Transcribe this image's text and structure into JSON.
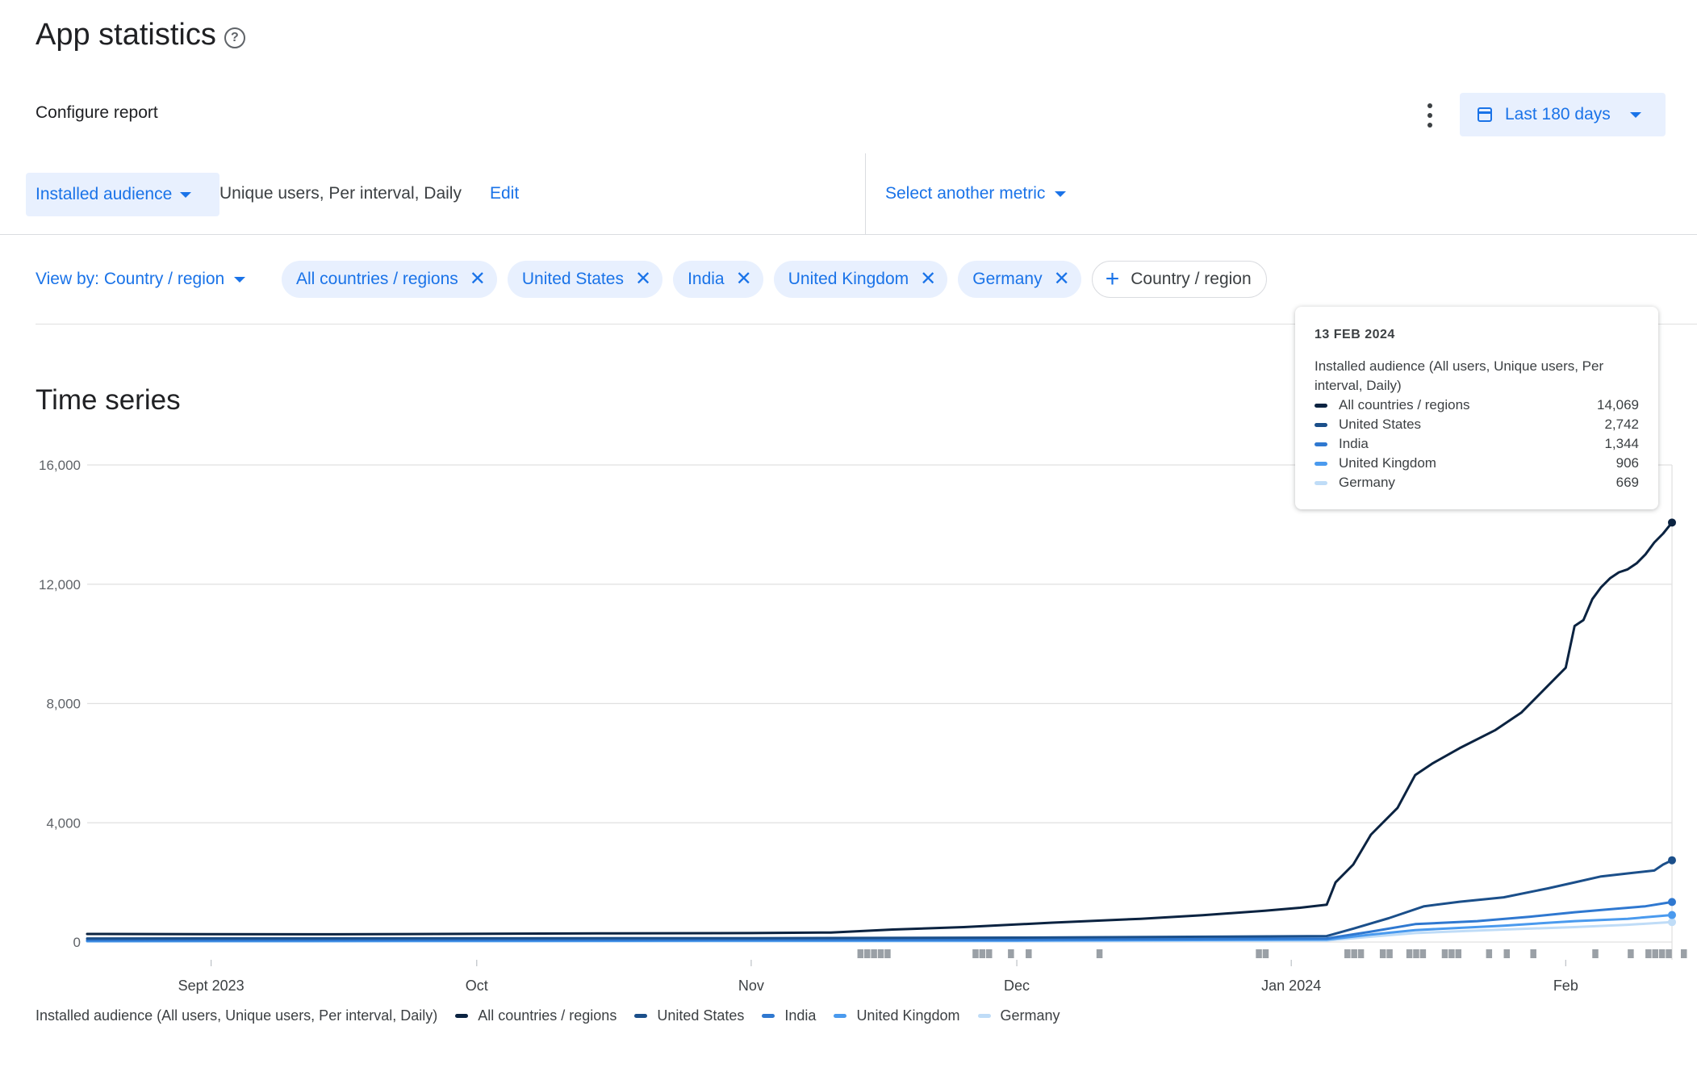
{
  "page": {
    "title": "App statistics",
    "help_icon": "help-circle-icon",
    "configure_label": "Configure report",
    "more_icon": "more-vert-icon",
    "date_range": {
      "icon": "calendar-icon",
      "label": "Last 180 days"
    }
  },
  "metric": {
    "selected": "Installed audience",
    "description": "Unique users, Per interval, Daily",
    "edit_label": "Edit",
    "another_metric_label": "Select another metric"
  },
  "filters": {
    "view_by_label": "View by: Country / region",
    "chips": [
      {
        "label": "All countries / regions"
      },
      {
        "label": "United States"
      },
      {
        "label": "India"
      },
      {
        "label": "United Kingdom"
      },
      {
        "label": "Germany"
      }
    ],
    "add_chip_label": "Country / region"
  },
  "time_series": {
    "title": "Time series"
  },
  "tooltip": {
    "date": "13 FEB 2024",
    "metric": "Installed audience (All users, Unique users, Per interval, Daily)",
    "rows": [
      {
        "name": "All countries / regions",
        "value": "14,069"
      },
      {
        "name": "United States",
        "value": "2,742"
      },
      {
        "name": "India",
        "value": "1,344"
      },
      {
        "name": "United Kingdom",
        "value": "906"
      },
      {
        "name": "Germany",
        "value": "669"
      }
    ]
  },
  "legend": {
    "metric": "Installed audience (All users, Unique users, Per interval, Daily)"
  },
  "colors": {
    "all": "#0b2341",
    "us": "#1b4f8a",
    "india": "#2f78d0",
    "uk": "#4a9aee",
    "germany": "#bfdcf7",
    "accent": "#1a73e8"
  },
  "chart_data": {
    "type": "line",
    "x_start": "2023-08-18",
    "x_end": "2024-02-13",
    "x_ticks": [
      "Sept 2023",
      "Oct",
      "Nov",
      "Dec",
      "Jan 2024",
      "Feb"
    ],
    "y_ticks": [
      "0",
      "4,000",
      "8,000",
      "12,000",
      "16,000"
    ],
    "ylim": [
      0,
      16000
    ],
    "grid": true,
    "series": [
      {
        "name": "All countries / regions",
        "color": "#0b2341",
        "points": [
          [
            "2023-08-18",
            270
          ],
          [
            "2023-09-15",
            260
          ],
          [
            "2023-10-15",
            290
          ],
          [
            "2023-11-01",
            300
          ],
          [
            "2023-11-10",
            320
          ],
          [
            "2023-11-17",
            420
          ],
          [
            "2023-11-25",
            500
          ],
          [
            "2023-12-05",
            650
          ],
          [
            "2023-12-15",
            780
          ],
          [
            "2023-12-22",
            900
          ],
          [
            "2023-12-29",
            1050
          ],
          [
            "2024-01-02",
            1150
          ],
          [
            "2024-01-05",
            1250
          ],
          [
            "2024-01-06",
            2000
          ],
          [
            "2024-01-08",
            2600
          ],
          [
            "2024-01-10",
            3600
          ],
          [
            "2024-01-13",
            4500
          ],
          [
            "2024-01-15",
            5600
          ],
          [
            "2024-01-17",
            6000
          ],
          [
            "2024-01-20",
            6500
          ],
          [
            "2024-01-24",
            7100
          ],
          [
            "2024-01-27",
            7700
          ],
          [
            "2024-01-30",
            8600
          ],
          [
            "2024-02-01",
            9200
          ],
          [
            "2024-02-02",
            10600
          ],
          [
            "2024-02-03",
            10800
          ],
          [
            "2024-02-04",
            11500
          ],
          [
            "2024-02-05",
            11900
          ],
          [
            "2024-02-06",
            12200
          ],
          [
            "2024-02-07",
            12400
          ],
          [
            "2024-02-08",
            12500
          ],
          [
            "2024-02-09",
            12700
          ],
          [
            "2024-02-10",
            13000
          ],
          [
            "2024-02-11",
            13400
          ],
          [
            "2024-02-12",
            13700
          ],
          [
            "2024-02-13",
            14069
          ]
        ]
      },
      {
        "name": "United States",
        "color": "#1b4f8a",
        "points": [
          [
            "2023-08-18",
            120
          ],
          [
            "2023-11-01",
            130
          ],
          [
            "2023-12-01",
            150
          ],
          [
            "2024-01-05",
            200
          ],
          [
            "2024-01-08",
            450
          ],
          [
            "2024-01-12",
            800
          ],
          [
            "2024-01-16",
            1200
          ],
          [
            "2024-01-20",
            1350
          ],
          [
            "2024-01-25",
            1500
          ],
          [
            "2024-01-30",
            1800
          ],
          [
            "2024-02-02",
            2000
          ],
          [
            "2024-02-05",
            2200
          ],
          [
            "2024-02-08",
            2300
          ],
          [
            "2024-02-11",
            2400
          ],
          [
            "2024-02-12",
            2600
          ],
          [
            "2024-02-13",
            2742
          ]
        ]
      },
      {
        "name": "India",
        "color": "#2f78d0",
        "points": [
          [
            "2023-08-18",
            60
          ],
          [
            "2023-12-01",
            80
          ],
          [
            "2024-01-05",
            120
          ],
          [
            "2024-01-10",
            350
          ],
          [
            "2024-01-15",
            600
          ],
          [
            "2024-01-22",
            700
          ],
          [
            "2024-01-28",
            850
          ],
          [
            "2024-02-02",
            1000
          ],
          [
            "2024-02-06",
            1100
          ],
          [
            "2024-02-10",
            1200
          ],
          [
            "2024-02-13",
            1344
          ]
        ]
      },
      {
        "name": "United Kingdom",
        "color": "#4a9aee",
        "points": [
          [
            "2023-08-18",
            30
          ],
          [
            "2023-12-01",
            50
          ],
          [
            "2024-01-05",
            80
          ],
          [
            "2024-01-10",
            250
          ],
          [
            "2024-01-15",
            400
          ],
          [
            "2024-01-25",
            550
          ],
          [
            "2024-02-02",
            700
          ],
          [
            "2024-02-08",
            780
          ],
          [
            "2024-02-13",
            906
          ]
        ]
      },
      {
        "name": "Germany",
        "color": "#bfdcf7",
        "points": [
          [
            "2023-08-18",
            20
          ],
          [
            "2023-12-01",
            30
          ],
          [
            "2024-01-05",
            50
          ],
          [
            "2024-01-10",
            180
          ],
          [
            "2024-01-15",
            300
          ],
          [
            "2024-01-25",
            420
          ],
          [
            "2024-02-02",
            500
          ],
          [
            "2024-02-08",
            580
          ],
          [
            "2024-02-13",
            669
          ]
        ]
      }
    ]
  }
}
